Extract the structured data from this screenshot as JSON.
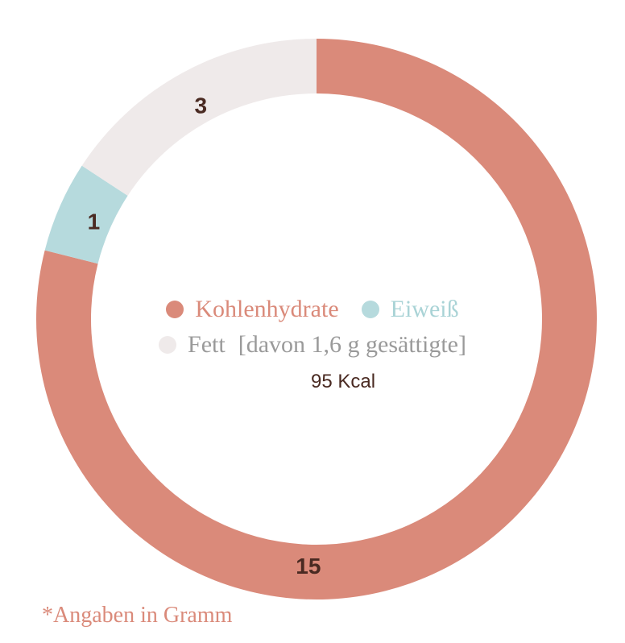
{
  "chart_data": {
    "type": "pie",
    "series": [
      {
        "name": "Kohlenhydrate",
        "value": 15,
        "label": "15",
        "color": "#da8a7a"
      },
      {
        "name": "Eiweiß",
        "value": 1,
        "label": "1",
        "color": "#b6dadd"
      },
      {
        "name": "Fett",
        "value": 3,
        "label": "3",
        "color": "#efeaea"
      }
    ],
    "center": {
      "kcal": "95 Kcal"
    },
    "fat_note": "[davon 1,6 g gesättigte]"
  },
  "footnote": "*Angaben in Gramm",
  "colors": {
    "carbs": "#da8a7a",
    "protein": "#b6dadd",
    "fat": "#efeaea",
    "legend_text_carbs": "#da8a7a",
    "legend_text_protein": "#a9d3d6",
    "legend_text_fat": "#9a9a9a",
    "footnote": "#da8a7a"
  }
}
